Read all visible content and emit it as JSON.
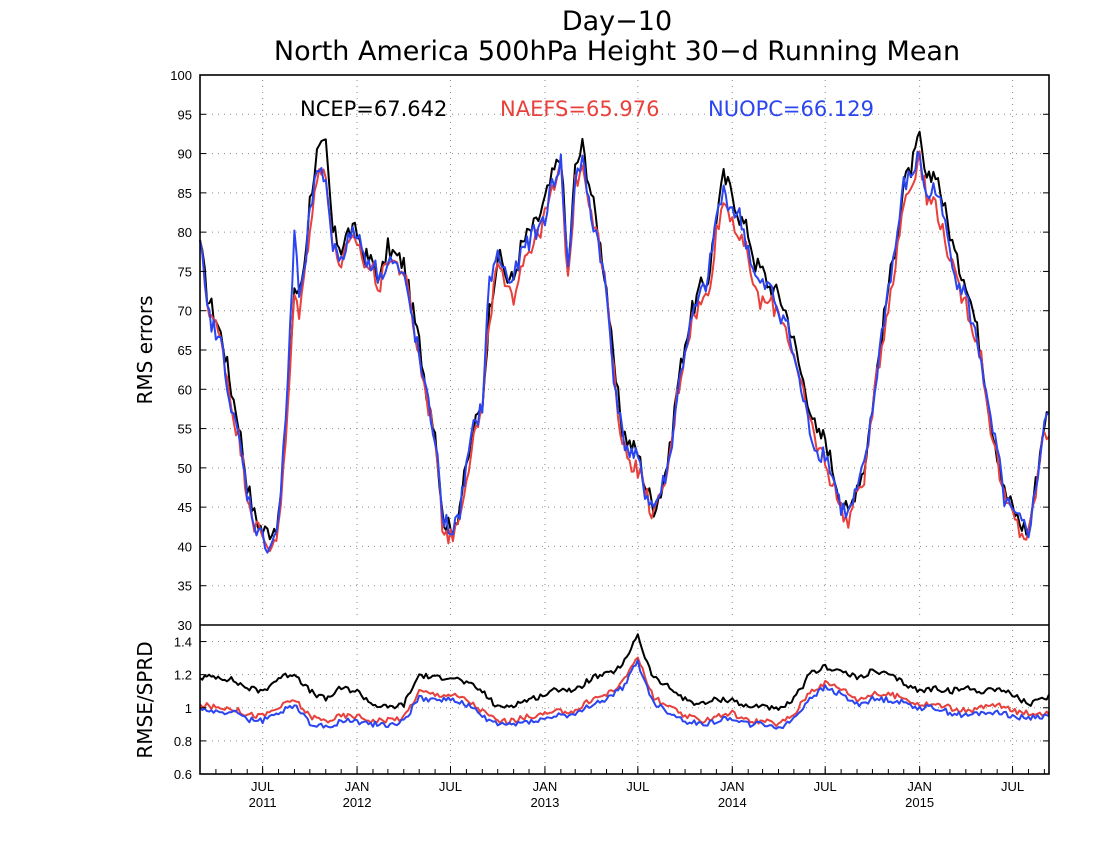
{
  "chart_data": [
    {
      "type": "line",
      "title": "Day−10",
      "subtitle": "North America 500hPa Height 30−d Running Mean",
      "ylabel": "RMS errors",
      "ylim": [
        30,
        100
      ],
      "yticks": [
        30,
        35,
        40,
        45,
        50,
        55,
        60,
        65,
        70,
        75,
        80,
        85,
        90,
        95,
        100
      ],
      "grid": true,
      "legend": [
        {
          "label": "NCEP=67.642",
          "color": "#000000"
        },
        {
          "label": "NAEFS=65.976",
          "color": "#e8413c"
        },
        {
          "label": "NUOPC=66.129",
          "color": "#2b46f0"
        }
      ],
      "x_range": [
        "2011-03-01",
        "2015-09-10"
      ],
      "x_keys": [
        "2011-03-01",
        "2011-03-15",
        "2011-04-01",
        "2011-04-15",
        "2011-05-01",
        "2011-05-15",
        "2011-06-01",
        "2011-06-15",
        "2011-07-01",
        "2011-07-15",
        "2011-08-01",
        "2011-08-15",
        "2011-09-01",
        "2011-09-10",
        "2011-09-20",
        "2011-10-01",
        "2011-10-15",
        "2011-11-01",
        "2011-11-15",
        "2011-12-01",
        "2011-12-15",
        "2012-01-01",
        "2012-01-15",
        "2012-02-01",
        "2012-02-15",
        "2012-03-01",
        "2012-03-15",
        "2012-04-01",
        "2012-04-15",
        "2012-05-01",
        "2012-05-15",
        "2012-06-01",
        "2012-06-15",
        "2012-07-01",
        "2012-07-15",
        "2012-08-01",
        "2012-08-15",
        "2012-09-01",
        "2012-09-15",
        "2012-10-01",
        "2012-10-10",
        "2012-10-20",
        "2012-11-01",
        "2012-11-15",
        "2012-12-01",
        "2012-12-15",
        "2013-01-01",
        "2013-01-15",
        "2013-02-01",
        "2013-02-15",
        "2013-03-01",
        "2013-03-15",
        "2013-04-01",
        "2013-04-15",
        "2013-05-01",
        "2013-05-15",
        "2013-06-01",
        "2013-06-15",
        "2013-07-01",
        "2013-07-15",
        "2013-08-01",
        "2013-08-15",
        "2013-09-01",
        "2013-09-15",
        "2013-10-01",
        "2013-10-15",
        "2013-11-01",
        "2013-11-15",
        "2013-12-01",
        "2013-12-15",
        "2014-01-01",
        "2014-01-15",
        "2014-02-01",
        "2014-02-15",
        "2014-03-01",
        "2014-03-15",
        "2014-04-01",
        "2014-04-15",
        "2014-05-01",
        "2014-05-15",
        "2014-06-01",
        "2014-06-15",
        "2014-07-01",
        "2014-07-15",
        "2014-08-01",
        "2014-08-15",
        "2014-09-01",
        "2014-09-15",
        "2014-10-01",
        "2014-10-15",
        "2014-11-01",
        "2014-11-15",
        "2014-12-01",
        "2014-12-15",
        "2015-01-01",
        "2015-01-15",
        "2015-02-01",
        "2015-02-15",
        "2015-03-01",
        "2015-03-15",
        "2015-04-01",
        "2015-04-15",
        "2015-05-01",
        "2015-05-15",
        "2015-06-01",
        "2015-06-15",
        "2015-07-01",
        "2015-07-15",
        "2015-08-01",
        "2015-08-15",
        "2015-09-01",
        "2015-09-10"
      ],
      "series": [
        {
          "name": "NCEP",
          "color": "#000000",
          "values": [
            79,
            72,
            69,
            66,
            60,
            56,
            48,
            44,
            42,
            42,
            43,
            55,
            73,
            72,
            76,
            84,
            90,
            91,
            80,
            78,
            80,
            80,
            77,
            76,
            74,
            78,
            77,
            76,
            71,
            66,
            60,
            55,
            44,
            42,
            44,
            50,
            55,
            58,
            70,
            77,
            76,
            74,
            74,
            78,
            80,
            81,
            84,
            87,
            90,
            75,
            88,
            91,
            85,
            80,
            73,
            63,
            55,
            53,
            52,
            48,
            45,
            47,
            52,
            60,
            66,
            70,
            73,
            74,
            82,
            87,
            85,
            82,
            80,
            76,
            75,
            73,
            72,
            70,
            66,
            62,
            58,
            54,
            54,
            50,
            46,
            44,
            48,
            50,
            58,
            65,
            73,
            78,
            86,
            88,
            92,
            86,
            88,
            84,
            80,
            76,
            74,
            70,
            65,
            58,
            52,
            47,
            45,
            43,
            42,
            48,
            56,
            57
          ]
        },
        {
          "name": "NAEFS",
          "color": "#e8413c",
          "values": [
            79,
            71,
            68,
            65,
            58,
            54,
            47,
            43,
            41,
            40,
            42,
            53,
            72,
            70,
            74,
            81,
            87,
            88,
            78,
            76,
            78,
            79,
            76,
            75,
            73,
            77,
            76,
            75,
            70,
            64,
            59,
            54,
            43,
            41,
            43,
            49,
            54,
            57,
            69,
            76,
            74,
            72,
            72,
            76,
            78,
            79,
            82,
            85,
            88,
            74,
            86,
            89,
            83,
            79,
            72,
            62,
            53,
            51,
            50,
            47,
            44,
            46,
            51,
            59,
            65,
            69,
            71,
            72,
            80,
            84,
            82,
            79,
            77,
            72,
            71,
            71,
            70,
            68,
            64,
            60,
            56,
            53,
            51,
            48,
            45,
            43,
            47,
            49,
            57,
            64,
            71,
            76,
            84,
            86,
            90,
            84,
            84,
            80,
            77,
            73,
            71,
            68,
            64,
            57,
            51,
            46,
            44,
            42,
            41,
            47,
            55,
            54
          ]
        },
        {
          "name": "NUOPC",
          "color": "#2b46f0",
          "values": [
            79,
            70,
            67,
            65,
            57,
            54,
            47,
            43,
            41,
            40,
            43,
            56,
            80,
            72,
            74,
            83,
            87,
            87,
            78,
            77,
            79,
            80,
            77,
            76,
            74,
            77,
            76,
            74,
            70,
            64,
            59,
            54,
            44,
            42,
            43,
            50,
            55,
            58,
            74,
            77,
            76,
            74,
            74,
            77,
            79,
            80,
            82,
            86,
            89,
            75,
            87,
            89,
            82,
            79,
            72,
            62,
            54,
            52,
            51,
            47,
            45,
            47,
            51,
            59,
            65,
            69,
            72,
            74,
            82,
            85,
            83,
            82,
            78,
            74,
            73,
            73,
            70,
            69,
            64,
            60,
            55,
            52,
            52,
            49,
            45,
            44,
            47,
            50,
            57,
            65,
            73,
            78,
            86,
            87,
            90,
            84,
            86,
            82,
            78,
            74,
            72,
            68,
            64,
            57,
            52,
            46,
            44,
            43,
            42,
            47,
            56,
            57
          ]
        }
      ]
    },
    {
      "type": "line",
      "ylabel": "RMSE/SPRD",
      "ylim": [
        0.6,
        1.5
      ],
      "yticks": [
        "0.6",
        "0.8",
        "1",
        "1.2",
        "1.4"
      ],
      "grid": true,
      "x_axis_labels": [
        {
          "date": "2011-07-01",
          "month": "JUL",
          "year": "2011"
        },
        {
          "date": "2012-01-01",
          "month": "JAN",
          "year": "2012"
        },
        {
          "date": "2012-07-01",
          "month": "JUL",
          "year": ""
        },
        {
          "date": "2013-01-01",
          "month": "JAN",
          "year": "2013"
        },
        {
          "date": "2013-07-01",
          "month": "JUL",
          "year": ""
        },
        {
          "date": "2014-01-01",
          "month": "JAN",
          "year": "2014"
        },
        {
          "date": "2014-07-01",
          "month": "JUL",
          "year": ""
        },
        {
          "date": "2015-01-01",
          "month": "JAN",
          "year": "2015"
        },
        {
          "date": "2015-07-01",
          "month": "JUL",
          "year": ""
        }
      ],
      "x_keys": [
        "2011-03-01",
        "2011-04-01",
        "2011-05-01",
        "2011-06-01",
        "2011-07-01",
        "2011-08-01",
        "2011-09-01",
        "2011-10-01",
        "2011-11-01",
        "2011-12-01",
        "2012-01-01",
        "2012-02-01",
        "2012-03-01",
        "2012-04-01",
        "2012-05-01",
        "2012-06-01",
        "2012-07-01",
        "2012-08-01",
        "2012-09-01",
        "2012-10-01",
        "2012-11-01",
        "2012-12-01",
        "2013-01-01",
        "2013-02-01",
        "2013-03-01",
        "2013-04-01",
        "2013-05-01",
        "2013-06-01",
        "2013-07-01",
        "2013-07-15",
        "2013-08-01",
        "2013-09-01",
        "2013-10-01",
        "2013-11-01",
        "2013-12-01",
        "2014-01-01",
        "2014-02-01",
        "2014-03-01",
        "2014-04-01",
        "2014-05-01",
        "2014-06-01",
        "2014-07-01",
        "2014-08-01",
        "2014-09-01",
        "2014-10-01",
        "2014-11-01",
        "2014-12-01",
        "2015-01-01",
        "2015-02-01",
        "2015-03-01",
        "2015-04-01",
        "2015-05-01",
        "2015-06-01",
        "2015-07-01",
        "2015-08-01",
        "2015-09-01",
        "2015-09-10"
      ],
      "series": [
        {
          "name": "NCEP",
          "color": "#000000",
          "values": [
            1.18,
            1.19,
            1.17,
            1.12,
            1.1,
            1.18,
            1.21,
            1.1,
            1.05,
            1.12,
            1.1,
            1.02,
            1.0,
            1.02,
            1.2,
            1.18,
            1.19,
            1.15,
            1.1,
            1.0,
            1.02,
            1.05,
            1.08,
            1.12,
            1.1,
            1.18,
            1.2,
            1.25,
            1.45,
            1.3,
            1.18,
            1.12,
            1.05,
            1.02,
            1.05,
            1.05,
            1.0,
            1.02,
            0.98,
            1.05,
            1.2,
            1.25,
            1.22,
            1.18,
            1.22,
            1.2,
            1.15,
            1.1,
            1.12,
            1.1,
            1.12,
            1.1,
            1.12,
            1.08,
            1.02,
            1.05,
            1.08
          ]
        },
        {
          "name": "NAEFS",
          "color": "#e8413c",
          "values": [
            1.02,
            1.0,
            1.0,
            0.96,
            0.95,
            1.0,
            1.05,
            0.95,
            0.92,
            0.95,
            0.95,
            0.92,
            0.93,
            0.94,
            1.1,
            1.08,
            1.08,
            1.05,
            0.98,
            0.92,
            0.92,
            0.95,
            0.96,
            0.98,
            0.98,
            1.05,
            1.08,
            1.15,
            1.32,
            1.18,
            1.06,
            1.0,
            0.95,
            0.92,
            0.95,
            0.97,
            0.92,
            0.92,
            0.9,
            0.96,
            1.1,
            1.15,
            1.12,
            1.05,
            1.08,
            1.08,
            1.06,
            1.02,
            1.02,
            1.0,
            0.98,
            1.0,
            1.02,
            0.98,
            0.97,
            0.97,
            0.96
          ]
        },
        {
          "name": "NUOPC",
          "color": "#2b46f0",
          "values": [
            1.0,
            0.97,
            0.98,
            0.93,
            0.92,
            0.97,
            1.02,
            0.91,
            0.88,
            0.92,
            0.92,
            0.9,
            0.9,
            0.92,
            1.06,
            1.05,
            1.05,
            1.02,
            0.95,
            0.9,
            0.9,
            0.92,
            0.93,
            0.96,
            0.95,
            1.02,
            1.05,
            1.12,
            1.28,
            1.15,
            1.03,
            0.97,
            0.92,
            0.9,
            0.92,
            0.94,
            0.9,
            0.9,
            0.88,
            0.93,
            1.06,
            1.12,
            1.08,
            1.02,
            1.05,
            1.05,
            1.03,
            1.0,
            1.0,
            0.97,
            0.95,
            0.97,
            0.98,
            0.95,
            0.94,
            0.95,
            0.95
          ]
        }
      ]
    }
  ]
}
